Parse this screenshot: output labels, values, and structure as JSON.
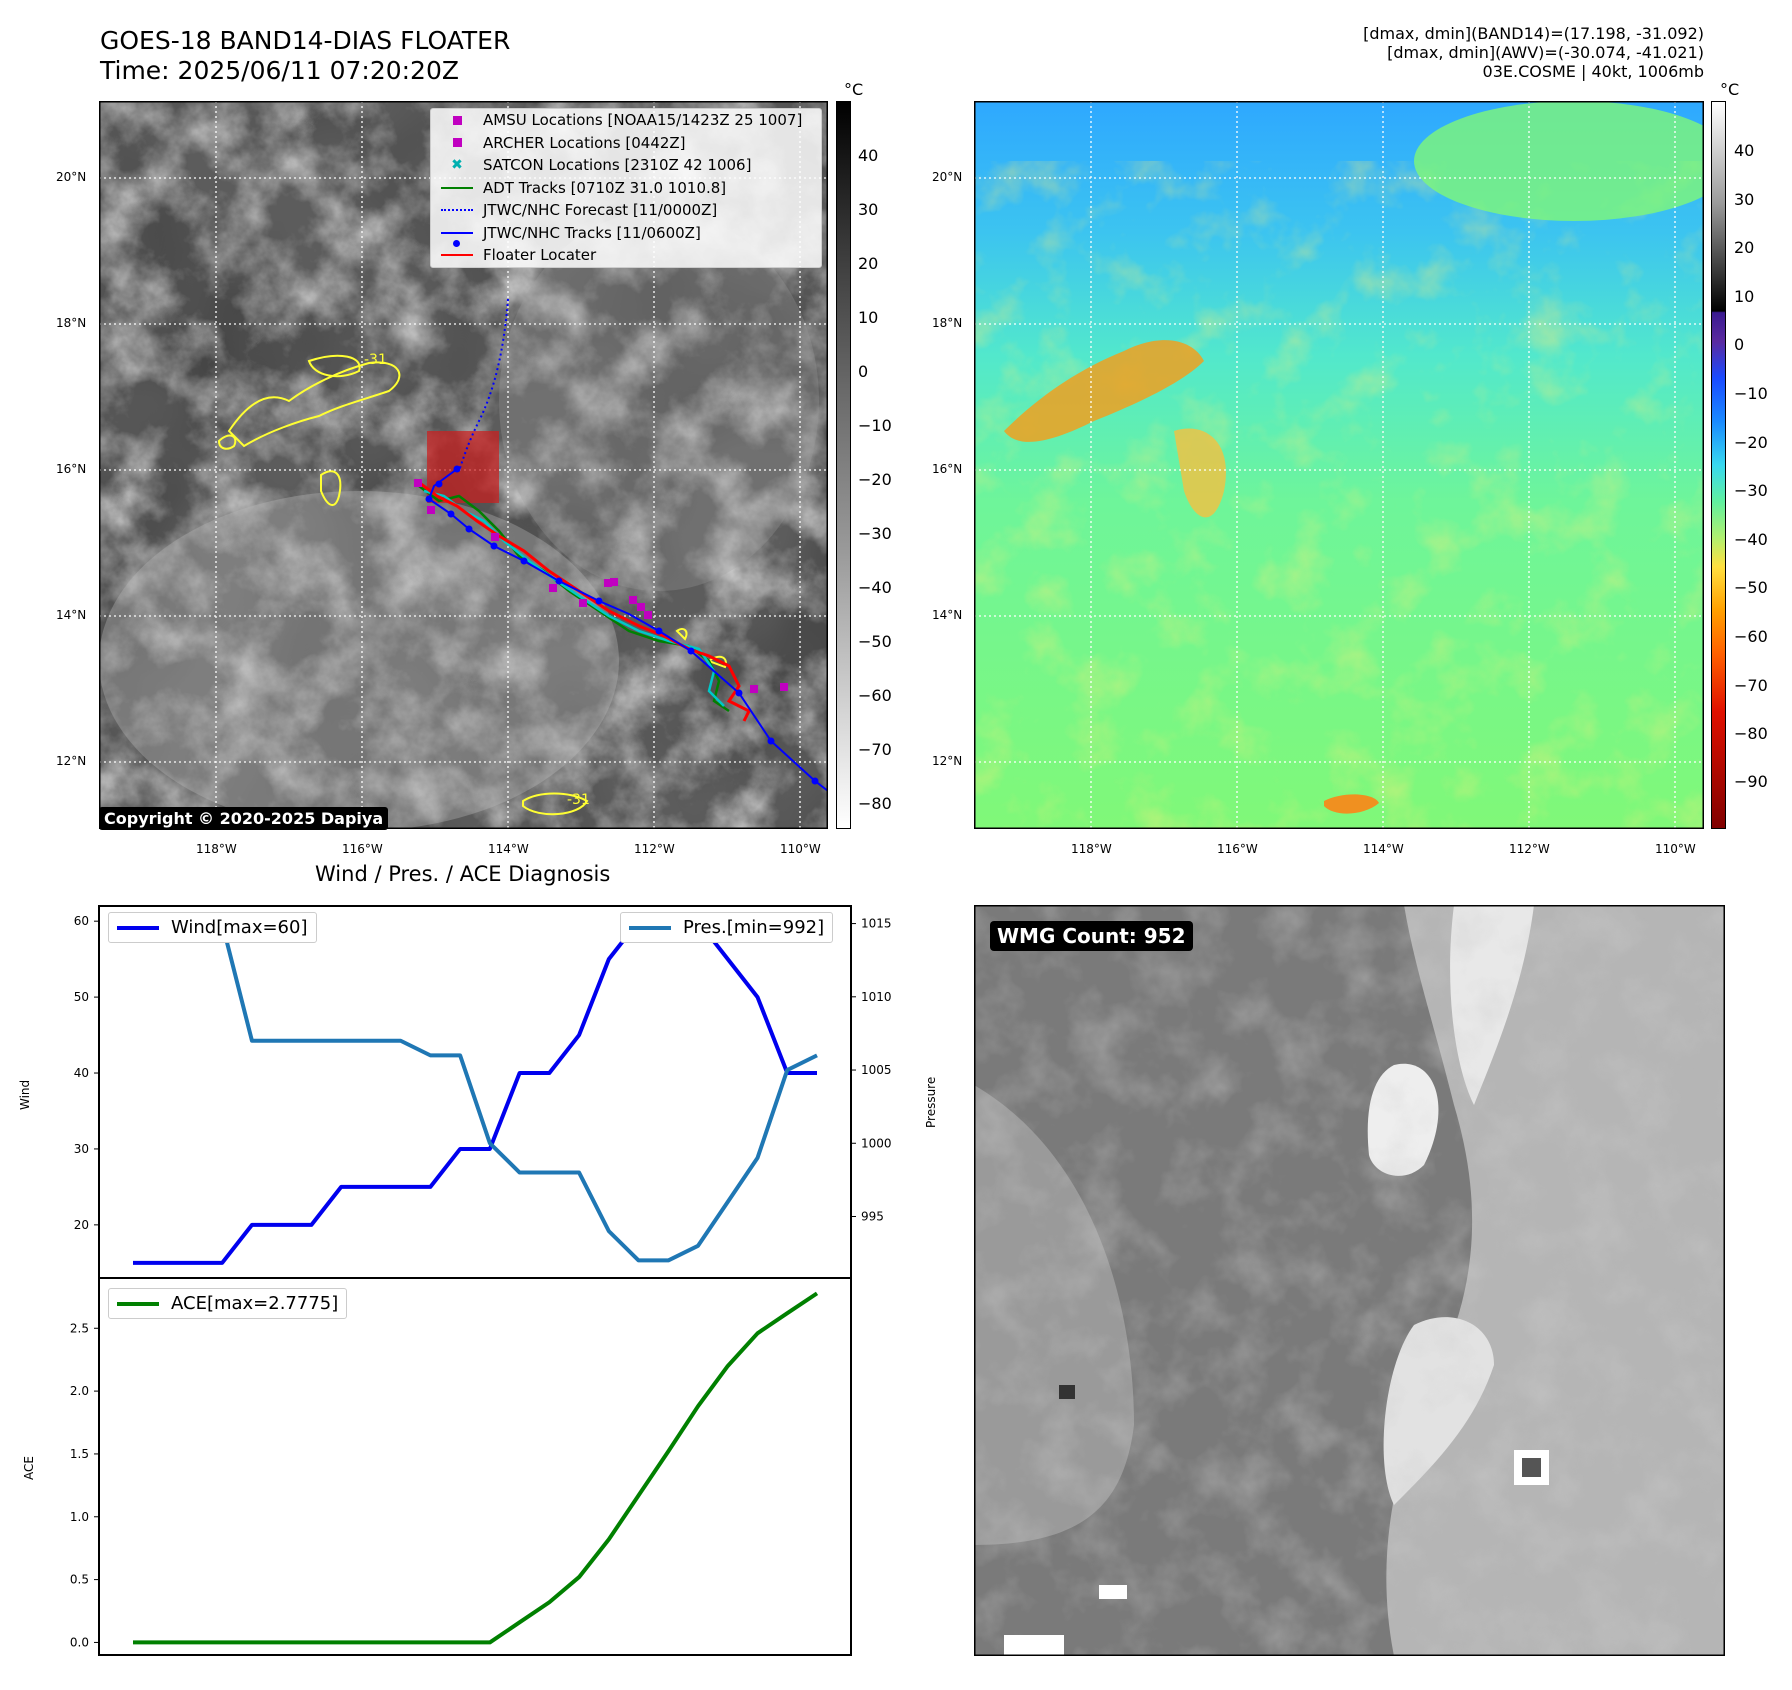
{
  "header": {
    "title": "GOES-18 BAND14-DIAS FLOATER",
    "time": "Time: 2025/06/11 07:20:20Z",
    "info_line1": "[dmax, dmin](BAND14)=(17.198, -31.092)",
    "info_line2": "[dmax, dmin](AWV)=(-30.074, -41.021)",
    "info_line3": "03E.COSME | 40kt, 1006mb"
  },
  "map": {
    "lon_ticks": [
      "118°W",
      "116°W",
      "114°W",
      "112°W",
      "110°W"
    ],
    "lat_ticks": [
      "20°N",
      "18°N",
      "16°N",
      "14°N",
      "12°N"
    ],
    "contour_label": "-31",
    "copyright": "Copyright © 2020-2025 Dapiya",
    "legend": [
      {
        "label": "AMSU Locations [NOAA15/1423Z 25 1007]",
        "marker": "square",
        "color": "#c000c0"
      },
      {
        "label": "ARCHER Locations [0442Z]",
        "marker": "square",
        "color": "#c000c0"
      },
      {
        "label": "SATCON Locations [2310Z 42 1006]",
        "marker": "x",
        "color": "#00b0b0"
      },
      {
        "label": "ADT Tracks [0710Z 31.0 1010.8]",
        "marker": "line",
        "color": "#008000"
      },
      {
        "label": "JTWC/NHC Forecast [11/0000Z]",
        "marker": "dotted",
        "color": "#0000ff"
      },
      {
        "label": "JTWC/NHC Tracks [11/0600Z]",
        "marker": "line-dot",
        "color": "#0000ff"
      },
      {
        "label": "Floater Locater",
        "marker": "line",
        "color": "#ff0000"
      }
    ]
  },
  "colorbars": {
    "unit": "°C",
    "gray_ticks": [
      "40",
      "30",
      "20",
      "10",
      "0",
      "−10",
      "−20",
      "−30",
      "−40",
      "−50",
      "−60",
      "−70",
      "−80"
    ],
    "awv_ticks": [
      "40",
      "30",
      "20",
      "10",
      "0",
      "−10",
      "−20",
      "−30",
      "−40",
      "−50",
      "−60",
      "−70",
      "−80",
      "−90"
    ]
  },
  "diag": {
    "title": "Wind / Pres. / ACE Diagnosis",
    "wind_legend": "Wind[max=60]",
    "pres_legend": "Pres.[min=992]",
    "ace_legend": "ACE[max=2.7775]",
    "wind_axis_label": "Wind",
    "pres_axis_label": "Pressure",
    "ace_axis_label": "ACE"
  },
  "wmg": {
    "label": "WMG Count: 952"
  },
  "chart_data": [
    {
      "type": "line",
      "title": "Wind / Pres. / ACE Diagnosis",
      "ylabel": "Wind",
      "ylim": [
        13,
        62
      ],
      "yticks": [
        20,
        30,
        40,
        50,
        60
      ],
      "y2label": "Pressure",
      "y2lim": [
        990.8,
        1016.2
      ],
      "y2ticks": [
        995,
        1000,
        1005,
        1010,
        1015
      ],
      "x": [
        0,
        1,
        2,
        3,
        4,
        5,
        6,
        7,
        8,
        9,
        10,
        11,
        12,
        13,
        14,
        15,
        16,
        17,
        18,
        19,
        20,
        21,
        22,
        23
      ],
      "series": [
        {
          "name": "Wind[max=60]",
          "axis": "left",
          "color": "#0000ee",
          "values": [
            15,
            15,
            15,
            15,
            20,
            20,
            20,
            25,
            25,
            25,
            25,
            30,
            30,
            40,
            40,
            45,
            55,
            60,
            60,
            60,
            55,
            50,
            40,
            40
          ]
        },
        {
          "name": "Pres.[min=992]",
          "axis": "right",
          "color": "#1f77b4",
          "values": [
            1015,
            1015,
            1015,
            1015,
            1007,
            1007,
            1007,
            1007,
            1007,
            1007,
            1006,
            1006,
            1000,
            998,
            998,
            998,
            994,
            992,
            992,
            993,
            996,
            999,
            1005,
            1006
          ]
        }
      ]
    },
    {
      "type": "line",
      "ylabel": "ACE",
      "ylim": [
        -0.1,
        2.9
      ],
      "yticks": [
        0.0,
        0.5,
        1.0,
        1.5,
        2.0,
        2.5
      ],
      "ytick_labels": [
        "0.0",
        "0.5",
        "1.0",
        "1.5",
        "2.0",
        "2.5"
      ],
      "x": [
        0,
        1,
        2,
        3,
        4,
        5,
        6,
        7,
        8,
        9,
        10,
        11,
        12,
        13,
        14,
        15,
        16,
        17,
        18,
        19,
        20,
        21,
        22,
        23
      ],
      "series": [
        {
          "name": "ACE[max=2.7775]",
          "color": "#008000",
          "values": [
            0,
            0,
            0,
            0,
            0,
            0,
            0,
            0,
            0,
            0,
            0,
            0,
            0,
            0.16,
            0.32,
            0.52,
            0.82,
            1.17,
            1.52,
            1.88,
            2.2,
            2.46,
            2.62,
            2.7775
          ]
        }
      ]
    }
  ]
}
